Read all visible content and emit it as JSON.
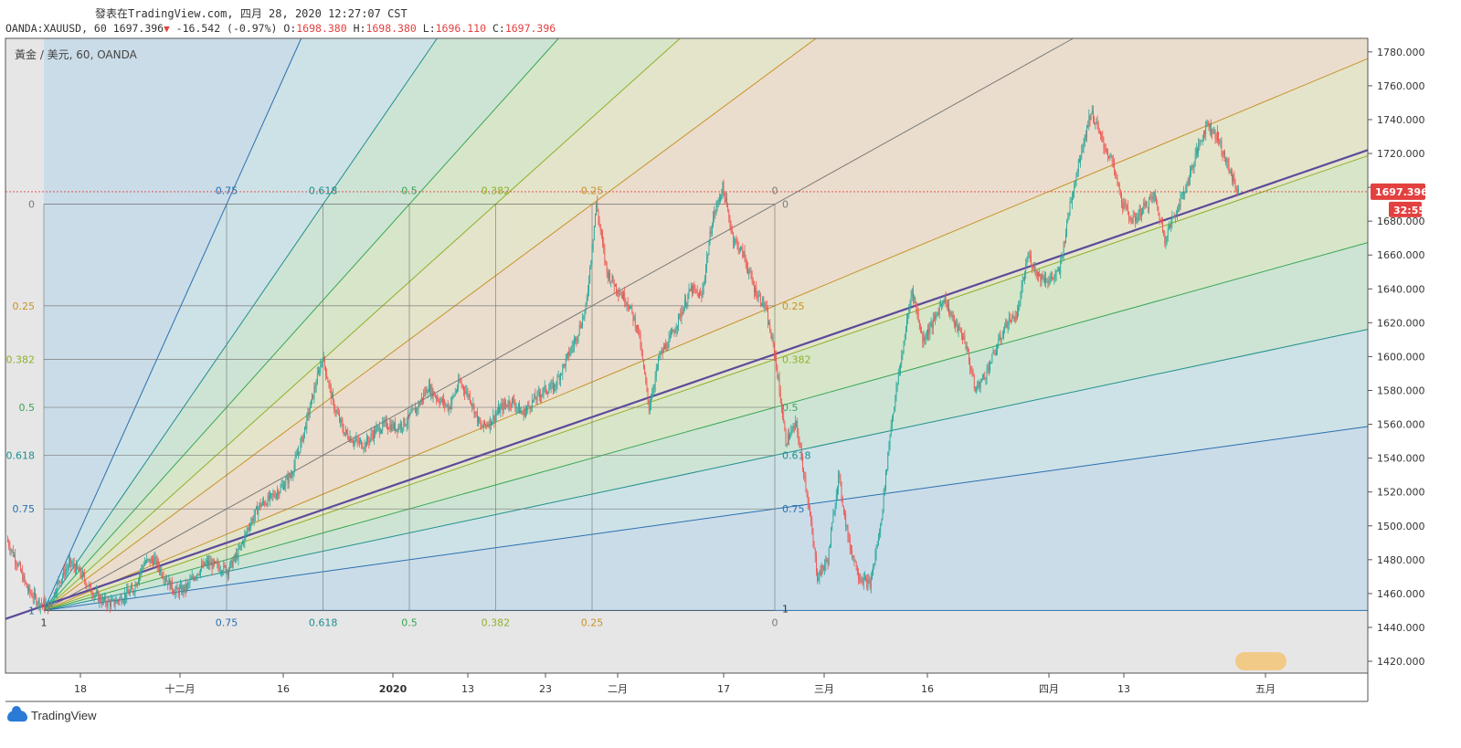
{
  "header": {
    "title": "發表在TradingView.com, 四月 28, 2020 12:27:07 CST",
    "symbol": "OANDA:XAUUSD, 60",
    "last": "1697.396",
    "change": "-16.542 (-0.97%)",
    "o_label": "O:",
    "o": "1698.380",
    "h_label": "H:",
    "h": "1698.380",
    "l_label": "L:",
    "l": "1696.110",
    "c_label": "C:",
    "c": "1697.396"
  },
  "pane_legend": "黃金 / 美元, 60, OANDA",
  "price_tag": "1697.396",
  "countdown_tag": "32:55",
  "footer_brand": "TradingView",
  "colors": {
    "blue": "#2a6fb0",
    "teal": "#1f8f8f",
    "green": "#3aa655",
    "lime": "#8fb02c",
    "orange": "#c8922a",
    "gray": "#7a7a7a",
    "purple": "#5b4b9a",
    "red": "#e34040"
  },
  "chart_data": {
    "type": "candlestick",
    "instrument": "OANDA:XAUUSD",
    "timeframe": "60",
    "y_axis": {
      "ticks": [
        1780,
        1760,
        1740,
        1720,
        1700,
        1680,
        1660,
        1640,
        1620,
        1600,
        1580,
        1560,
        1540,
        1520,
        1500,
        1480,
        1460,
        1440,
        1420
      ],
      "ylim": [
        1413,
        1788
      ]
    },
    "x_axis": {
      "ticks": [
        "18",
        "十二月",
        "16",
        "2020",
        "13",
        "23",
        "二月",
        "17",
        "三月",
        "16",
        "四月",
        "13",
        "五月"
      ]
    },
    "last_price": 1697.396,
    "gann_fan": {
      "origin_price": 1450,
      "top_price": 1690,
      "levels": [
        "0",
        "0.25",
        "0.382",
        "0.5",
        "0.618",
        "0.75",
        "1"
      ],
      "left_labels": [
        "0",
        "0.25",
        "0.382",
        "0.5",
        "0.618",
        "0.75",
        "1"
      ],
      "top_labels": [
        "0.75",
        "0.618",
        "0.5",
        "0.382",
        "0.25",
        "0"
      ],
      "bottom_labels": [
        "1",
        "0.75",
        "0.618",
        "0.5",
        "0.382",
        "0.25",
        "0"
      ],
      "right_labels": [
        "0",
        "0.25",
        "0.382",
        "0.5",
        "0.618",
        "0.75",
        "1"
      ]
    },
    "price_path": [
      1492,
      1478,
      1462,
      1455,
      1452,
      1468,
      1478,
      1472,
      1462,
      1456,
      1454,
      1458,
      1462,
      1478,
      1480,
      1470,
      1461,
      1463,
      1472,
      1478,
      1476,
      1474,
      1484,
      1500,
      1512,
      1516,
      1522,
      1530,
      1550,
      1575,
      1600,
      1572,
      1556,
      1550,
      1548,
      1556,
      1560,
      1558,
      1562,
      1570,
      1582,
      1575,
      1570,
      1585,
      1576,
      1558,
      1562,
      1570,
      1574,
      1566,
      1574,
      1580,
      1582,
      1596,
      1610,
      1628,
      1690,
      1650,
      1640,
      1632,
      1615,
      1570,
      1600,
      1610,
      1625,
      1640,
      1635,
      1680,
      1700,
      1670,
      1660,
      1640,
      1630,
      1600,
      1550,
      1560,
      1520,
      1470,
      1480,
      1530,
      1490,
      1470,
      1465,
      1500,
      1560,
      1600,
      1640,
      1610,
      1620,
      1635,
      1620,
      1610,
      1580,
      1590,
      1605,
      1620,
      1625,
      1660,
      1648,
      1645,
      1650,
      1690,
      1720,
      1745,
      1728,
      1715,
      1690,
      1680,
      1688,
      1695,
      1670,
      1685,
      1700,
      1720,
      1738,
      1730,
      1712,
      1697
    ]
  }
}
